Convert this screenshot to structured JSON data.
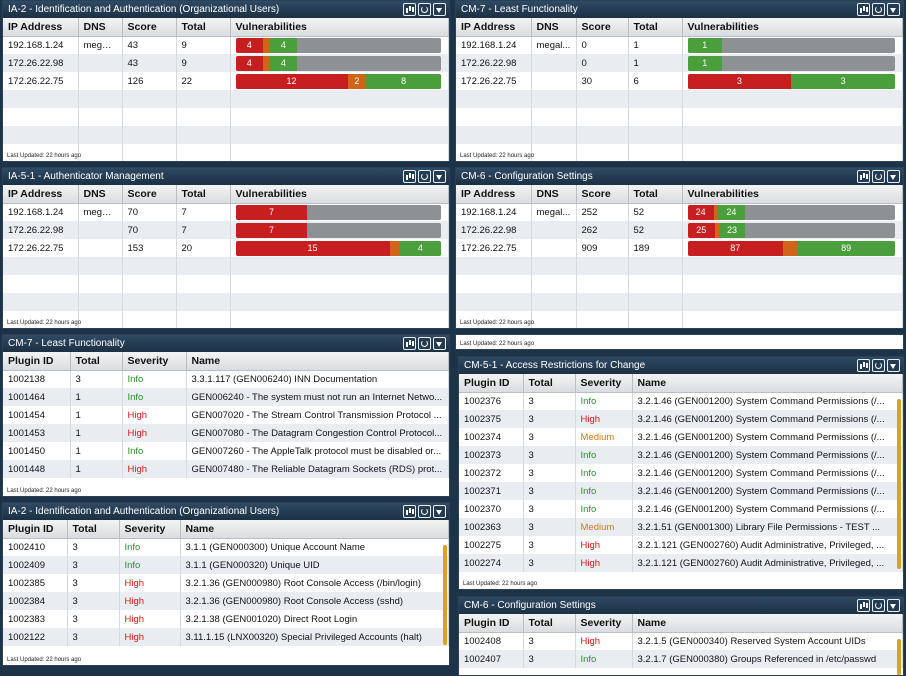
{
  "common": {
    "last_updated": "Last Updated: 22 hours ago"
  },
  "host_headers": [
    "IP Address",
    "DNS",
    "Score",
    "Total",
    "Vulnerabilities"
  ],
  "plugin_headers": [
    "Plugin ID",
    "Total",
    "Severity",
    "Name"
  ],
  "p1": {
    "title": "IA-2 - Identification and Authentication (Organizational Users)",
    "rows": [
      {
        "ip": "192.168.1.24",
        "dns": "megal...",
        "score": "43",
        "total": "9",
        "bars": [
          {
            "c": "crit",
            "v": 4,
            "l": "4"
          },
          {
            "c": "high",
            "v": 1,
            "l": ""
          },
          {
            "c": "low",
            "v": 4,
            "l": "4"
          }
        ],
        "scale": 30
      },
      {
        "ip": "172.26.22.98",
        "dns": "",
        "score": "43",
        "total": "9",
        "bars": [
          {
            "c": "crit",
            "v": 4,
            "l": "4"
          },
          {
            "c": "high",
            "v": 1,
            "l": ""
          },
          {
            "c": "low",
            "v": 4,
            "l": "4"
          }
        ],
        "scale": 30
      },
      {
        "ip": "172.26.22.75",
        "dns": "",
        "score": "126",
        "total": "22",
        "bars": [
          {
            "c": "crit",
            "v": 12,
            "l": "12"
          },
          {
            "c": "high",
            "v": 2,
            "l": "2"
          },
          {
            "c": "low",
            "v": 8,
            "l": "8"
          }
        ],
        "scale": 22
      }
    ]
  },
  "p2": {
    "title": "CM-7 - Least Functionality",
    "rows": [
      {
        "ip": "192.168.1.24",
        "dns": "megal...",
        "score": "0",
        "total": "1",
        "bars": [
          {
            "c": "low",
            "v": 1,
            "l": "1"
          }
        ],
        "scale": 6
      },
      {
        "ip": "172.26.22.98",
        "dns": "",
        "score": "0",
        "total": "1",
        "bars": [
          {
            "c": "low",
            "v": 1,
            "l": "1"
          }
        ],
        "scale": 6
      },
      {
        "ip": "172.26.22.75",
        "dns": "",
        "score": "30",
        "total": "6",
        "bars": [
          {
            "c": "crit",
            "v": 3,
            "l": "3"
          },
          {
            "c": "low",
            "v": 3,
            "l": "3"
          }
        ],
        "scale": 6
      }
    ]
  },
  "p3": {
    "title": "IA-5-1 - Authenticator Management",
    "rows": [
      {
        "ip": "192.168.1.24",
        "dns": "megal...",
        "score": "70",
        "total": "7",
        "bars": [
          {
            "c": "crit",
            "v": 7,
            "l": "7"
          }
        ],
        "scale": 20
      },
      {
        "ip": "172.26.22.98",
        "dns": "",
        "score": "70",
        "total": "7",
        "bars": [
          {
            "c": "crit",
            "v": 7,
            "l": "7"
          }
        ],
        "scale": 20
      },
      {
        "ip": "172.26.22.75",
        "dns": "",
        "score": "153",
        "total": "20",
        "bars": [
          {
            "c": "crit",
            "v": 15,
            "l": "15"
          },
          {
            "c": "high",
            "v": 1,
            "l": ""
          },
          {
            "c": "low",
            "v": 4,
            "l": "4"
          }
        ],
        "scale": 20
      }
    ]
  },
  "p4": {
    "title": "CM-6 - Configuration Settings",
    "rows": [
      {
        "ip": "192.168.1.24",
        "dns": "megal...",
        "score": "252",
        "total": "52",
        "bars": [
          {
            "c": "crit",
            "v": 24,
            "l": "24"
          },
          {
            "c": "high",
            "v": 4,
            "l": ""
          },
          {
            "c": "low",
            "v": 24,
            "l": "24"
          }
        ],
        "scale": 189
      },
      {
        "ip": "172.26.22.98",
        "dns": "",
        "score": "262",
        "total": "52",
        "bars": [
          {
            "c": "crit",
            "v": 25,
            "l": "25"
          },
          {
            "c": "high",
            "v": 4,
            "l": ""
          },
          {
            "c": "low",
            "v": 23,
            "l": "23"
          }
        ],
        "scale": 189
      },
      {
        "ip": "172.26.22.75",
        "dns": "",
        "score": "909",
        "total": "189",
        "bars": [
          {
            "c": "crit",
            "v": 87,
            "l": "87"
          },
          {
            "c": "high",
            "v": 13,
            "l": ""
          },
          {
            "c": "low",
            "v": 89,
            "l": "89"
          }
        ],
        "scale": 189
      }
    ]
  },
  "p5": {
    "title": "CM-7 - Least Functionality",
    "rows": [
      {
        "id": "1002138",
        "total": "3",
        "sev": "Info",
        "name": "3.3.1.117 (GEN006240) INN Documentation"
      },
      {
        "id": "1001464",
        "total": "1",
        "sev": "Info",
        "name": "GEN006240 - The system must not run an Internet Netwo..."
      },
      {
        "id": "1001454",
        "total": "1",
        "sev": "High",
        "name": "GEN007020 - The Stream Control Transmission Protocol ..."
      },
      {
        "id": "1001453",
        "total": "1",
        "sev": "High",
        "name": "GEN007080 - The Datagram Congestion Control Protocol..."
      },
      {
        "id": "1001450",
        "total": "1",
        "sev": "Info",
        "name": "GEN007260 - The AppleTalk protocol must be disabled or..."
      },
      {
        "id": "1001448",
        "total": "1",
        "sev": "High",
        "name": "GEN007480 - The Reliable Datagram Sockets (RDS) prot..."
      }
    ]
  },
  "p6": {
    "title": "IA-2 - Identification and Authentication (Organizational Users)",
    "rows": [
      {
        "id": "1002410",
        "total": "3",
        "sev": "Info",
        "name": "3.1.1 (GEN000300) Unique Account Name"
      },
      {
        "id": "1002409",
        "total": "3",
        "sev": "Info",
        "name": "3.1.1 (GEN000320) Unique UID"
      },
      {
        "id": "1002385",
        "total": "3",
        "sev": "High",
        "name": "3.2.1.36 (GEN000980) Root Console Access (/bin/login)"
      },
      {
        "id": "1002384",
        "total": "3",
        "sev": "High",
        "name": "3.2.1.36 (GEN000980) Root Console Access (sshd)"
      },
      {
        "id": "1002383",
        "total": "3",
        "sev": "High",
        "name": "3.2.1.38 (GEN001020) Direct Root Login"
      },
      {
        "id": "1002122",
        "total": "3",
        "sev": "High",
        "name": "3.11.1.15 (LNX00320) Special Privileged Accounts (halt)"
      }
    ]
  },
  "p7": {
    "title": "CM-5-1 - Access Restrictions for Change",
    "rows": [
      {
        "id": "1002376",
        "total": "3",
        "sev": "Info",
        "name": "3.2.1.46 (GEN001200) System Command Permissions (/..."
      },
      {
        "id": "1002375",
        "total": "3",
        "sev": "High",
        "name": "3.2.1.46 (GEN001200) System Command Permissions (/..."
      },
      {
        "id": "1002374",
        "total": "3",
        "sev": "Medium",
        "name": "3.2.1.46 (GEN001200) System Command Permissions (/..."
      },
      {
        "id": "1002373",
        "total": "3",
        "sev": "Info",
        "name": "3.2.1.46 (GEN001200) System Command Permissions (/..."
      },
      {
        "id": "1002372",
        "total": "3",
        "sev": "Info",
        "name": "3.2.1.46 (GEN001200) System Command Permissions (/..."
      },
      {
        "id": "1002371",
        "total": "3",
        "sev": "Info",
        "name": "3.2.1.46 (GEN001200) System Command Permissions (/..."
      },
      {
        "id": "1002370",
        "total": "3",
        "sev": "Info",
        "name": "3.2.1.46 (GEN001200) System Command Permissions (/..."
      },
      {
        "id": "1002363",
        "total": "3",
        "sev": "Medium",
        "name": "3.2.1.51 (GEN001300) Library File Permissions - TEST ..."
      },
      {
        "id": "1002275",
        "total": "3",
        "sev": "High",
        "name": "3.2.1.121 (GEN002760) Audit Administrative, Privileged, ..."
      },
      {
        "id": "1002274",
        "total": "3",
        "sev": "High",
        "name": "3.2.1.121 (GEN002760) Audit Administrative, Privileged, ..."
      }
    ]
  },
  "p8": {
    "title": "CM-6 - Configuration Settings",
    "rows": [
      {
        "id": "1002408",
        "total": "3",
        "sev": "High",
        "name": "3.2.1.5 (GEN000340) Reserved System Account UIDs"
      },
      {
        "id": "1002407",
        "total": "3",
        "sev": "Info",
        "name": "3.2.1.7 (GEN000380) Groups Referenced in /etc/passwd"
      }
    ]
  }
}
